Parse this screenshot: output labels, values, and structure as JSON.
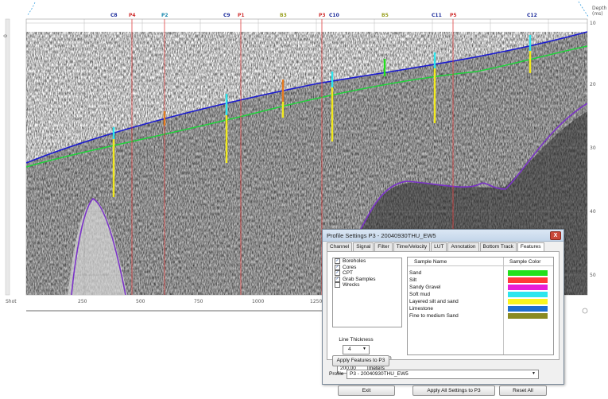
{
  "profile": {
    "depth_label": "Depth",
    "depth_unit": "(ms)",
    "depth_ticks": [
      "10",
      "20",
      "30",
      "40",
      "50"
    ],
    "shot_label": "Shot",
    "shot_ticks": [
      "250",
      "500",
      "750",
      "1000",
      "1250"
    ],
    "left_rail_value": "0",
    "markers": [
      {
        "label": "C8",
        "color": "#1a2a9a"
      },
      {
        "label": "P4",
        "color": "#d03030"
      },
      {
        "label": "P2",
        "color": "#1a8ab0"
      },
      {
        "label": "C9",
        "color": "#1a2a9a"
      },
      {
        "label": "P1",
        "color": "#d03030"
      },
      {
        "label": "B3",
        "color": "#9aa020"
      },
      {
        "label": "P3",
        "color": "#d03030"
      },
      {
        "label": "C10",
        "color": "#1a2a9a"
      },
      {
        "label": "B5",
        "color": "#9aa020"
      },
      {
        "label": "C11",
        "color": "#1a2a9a"
      },
      {
        "label": "P5",
        "color": "#d03030"
      },
      {
        "label": "C12",
        "color": "#1a2a9a"
      }
    ],
    "colors": {
      "seabed": "#1c1ccf",
      "reflector": "#1fd23a",
      "basement": "#7a32c8",
      "profile_line": "#e04040",
      "core": "#f2ea1c"
    }
  },
  "dialog": {
    "title": "Profile Settings P3 - 20040930THU_EW5",
    "close_symbol": "X",
    "tabs": [
      {
        "label": "Channel"
      },
      {
        "label": "Signal"
      },
      {
        "label": "Filter"
      },
      {
        "label": "Time/Velocity"
      },
      {
        "label": "LUT"
      },
      {
        "label": "Annotation"
      },
      {
        "label": "Bottom Track"
      },
      {
        "label": "Features",
        "active": true
      }
    ],
    "feature_types": [
      {
        "label": "Boreholes",
        "checked": true
      },
      {
        "label": "Cores",
        "checked": true
      },
      {
        "label": "CPT",
        "checked": true
      },
      {
        "label": "Grab Samples",
        "checked": true
      },
      {
        "label": "Wrecks",
        "checked": false
      }
    ],
    "check_mark": "✓",
    "line_thickness_label": "Line Thickness",
    "line_thickness_value": "4",
    "display_within_label": "Display Features within",
    "display_within_value": "200.00",
    "display_within_unit": "meters",
    "apply_features_button": "Apply Features to P3",
    "sample_name_header": "Sample Name",
    "sample_color_header": "Sample Color",
    "samples": [
      {
        "name": "Sand",
        "color": "#22e01c"
      },
      {
        "name": "Silt",
        "color": "#ff3a3a"
      },
      {
        "name": "Sandy Gravel",
        "color": "#e81ed8"
      },
      {
        "name": "Soft mud",
        "color": "#2ce6ee"
      },
      {
        "name": "Layered silt and sand",
        "color": "#fbf51e"
      },
      {
        "name": "Limestone",
        "color": "#1e6ed0"
      },
      {
        "name": "Fine to medium Sand",
        "color": "#8a8a22"
      }
    ],
    "profile_label": "Profile",
    "profile_value": "P3 - 20040930THU_EW5",
    "exit_button": "Exit",
    "apply_all_button": "Apply All Settings to P3",
    "reset_all_button": "Reset All"
  }
}
